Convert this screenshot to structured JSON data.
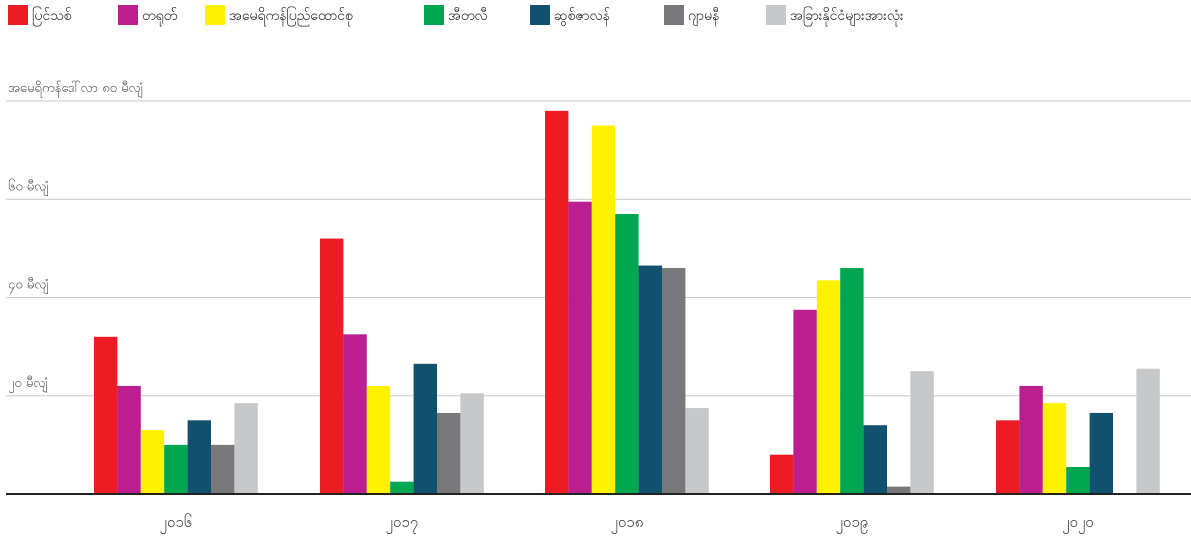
{
  "chart_data": {
    "type": "bar",
    "ylabel": "အမေရိကန်ဒေါ်လာ ၈၀ မီလျံ",
    "yticks": [
      {
        "value": 20,
        "label": "၂၀ မီလျံ"
      },
      {
        "value": 40,
        "label": "၄၀ မီလျံ"
      },
      {
        "value": 60,
        "label": "၆၀ မီလျံ"
      }
    ],
    "ylim": [
      0,
      80
    ],
    "grid": true,
    "legend_position": "top-left",
    "categories": [
      "၂၀၁၆",
      "၂၀၁၇",
      "၂၀၁၈",
      "၂၀၁၉",
      "၂၀၂၀"
    ],
    "series": [
      {
        "name": "ပြင်သစ်",
        "color": "#ed1c24",
        "values": [
          32,
          52,
          78,
          8,
          15
        ]
      },
      {
        "name": "တရုတ်",
        "color": "#bb1e8e",
        "values": [
          22,
          32.5,
          59.5,
          37.5,
          22
        ]
      },
      {
        "name": "အမေရိကန်ပြည်ထောင်စု",
        "color": "#fff200",
        "values": [
          13,
          22,
          75,
          43.5,
          18.5
        ]
      },
      {
        "name": "အီတလီ",
        "color": "#00a650",
        "values": [
          10,
          2.5,
          57,
          46,
          5.5
        ]
      },
      {
        "name": "ဆွစ်ဇာလန်",
        "color": "#12506f",
        "values": [
          15,
          26.5,
          46.5,
          14,
          16.5
        ]
      },
      {
        "name": "ဂျာမနီ",
        "color": "#78787a",
        "values": [
          10,
          16.5,
          46,
          1.5,
          0
        ]
      },
      {
        "name": "အခြားနိုင်ငံများအားလုံး",
        "color": "#c7c8ca",
        "values": [
          18.5,
          20.5,
          17.5,
          25,
          25.5
        ]
      }
    ]
  }
}
